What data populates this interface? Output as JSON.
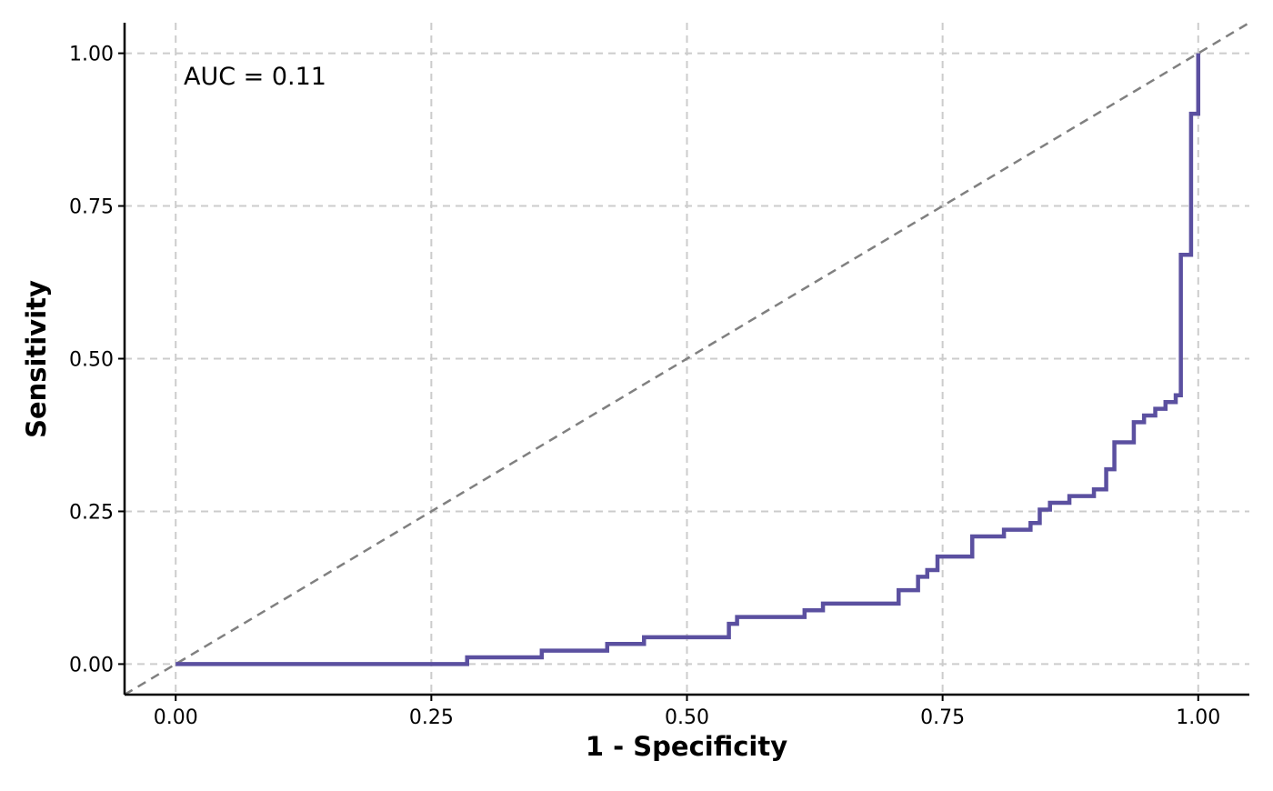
{
  "chart_data": {
    "type": "line",
    "title": "",
    "xlabel": "1 - Specificity",
    "ylabel": "Sensitivity",
    "xlim": [
      -0.05,
      1.05
    ],
    "ylim": [
      -0.05,
      1.05
    ],
    "x_ticks": [
      0.0,
      0.25,
      0.5,
      0.75,
      1.0
    ],
    "x_tick_labels": [
      "0.00",
      "0.25",
      "0.50",
      "0.75",
      "1.00"
    ],
    "y_ticks": [
      0.0,
      0.25,
      0.5,
      0.75,
      1.0
    ],
    "y_tick_labels": [
      "0.00",
      "0.25",
      "0.50",
      "0.75",
      "1.00"
    ],
    "grid": true,
    "grid_style": "dashed",
    "annotation": "AUC = 0.11",
    "colors": {
      "roc_line": "#5B50A0",
      "reference_line": "#808080",
      "grid": "#CCCCCC",
      "axis": "#000000"
    },
    "reference_line": {
      "style": "dashed",
      "slope": 1,
      "intercept": 0
    },
    "series": [
      {
        "step": "hv",
        "x": [
          0.0,
          0.285,
          0.358,
          0.422,
          0.458,
          0.541,
          0.549,
          0.615,
          0.633,
          0.707,
          0.726,
          0.735,
          0.745,
          0.779,
          0.81,
          0.836,
          0.845,
          0.855,
          0.874,
          0.898,
          0.91,
          0.918,
          0.937,
          0.947,
          0.958,
          0.968,
          0.978,
          0.983,
          0.993,
          1.0
        ],
        "y": [
          0.0,
          0.011,
          0.022,
          0.033,
          0.044,
          0.066,
          0.077,
          0.088,
          0.099,
          0.121,
          0.143,
          0.154,
          0.176,
          0.209,
          0.22,
          0.231,
          0.253,
          0.264,
          0.275,
          0.286,
          0.319,
          0.363,
          0.396,
          0.407,
          0.418,
          0.429,
          0.44,
          0.67,
          0.901,
          1.0
        ]
      }
    ]
  }
}
